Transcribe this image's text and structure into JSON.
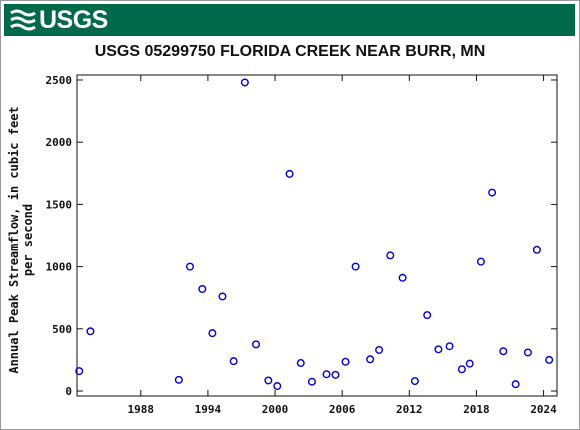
{
  "header": {
    "logo_text": "USGS",
    "brand_color": "#00694a"
  },
  "chart_data": {
    "type": "scatter",
    "title": "USGS 05299750 FLORIDA CREEK NEAR BURR, MN",
    "xlabel": "",
    "ylabel_lines": [
      "Annual Peak Streamflow, in cubic feet",
      "per second"
    ],
    "xlim": [
      1982.3,
      2025.2
    ],
    "ylim": [
      -40,
      2540
    ],
    "xticks": [
      1988,
      1994,
      2000,
      2006,
      2012,
      2018,
      2024
    ],
    "yticks": [
      0,
      500,
      1000,
      1500,
      2000,
      2500
    ],
    "marker_color": "#0000cc",
    "marker": "open-circle",
    "grid": false,
    "series": [
      {
        "x": [
          1982.5,
          1983.5,
          1991.4,
          1992.4,
          1993.5,
          1994.4,
          1995.3,
          1996.3,
          1997.3,
          1998.3,
          1999.4,
          2000.2,
          2001.3,
          2002.3,
          2003.3,
          2004.6,
          2005.4,
          2006.3,
          2007.2,
          2008.5,
          2009.3,
          2010.3,
          2011.4,
          2012.5,
          2013.6,
          2014.6,
          2015.6,
          2016.7,
          2017.4,
          2018.4,
          2019.4,
          2020.4,
          2021.5,
          2022.6,
          2023.4,
          2024.5
        ],
        "y": [
          160,
          480,
          90,
          1000,
          820,
          465,
          760,
          240,
          2480,
          375,
          85,
          40,
          1745,
          225,
          75,
          135,
          130,
          235,
          1000,
          255,
          330,
          1090,
          910,
          80,
          610,
          335,
          360,
          175,
          220,
          1040,
          1595,
          320,
          55,
          310,
          1135,
          250
        ]
      }
    ]
  }
}
